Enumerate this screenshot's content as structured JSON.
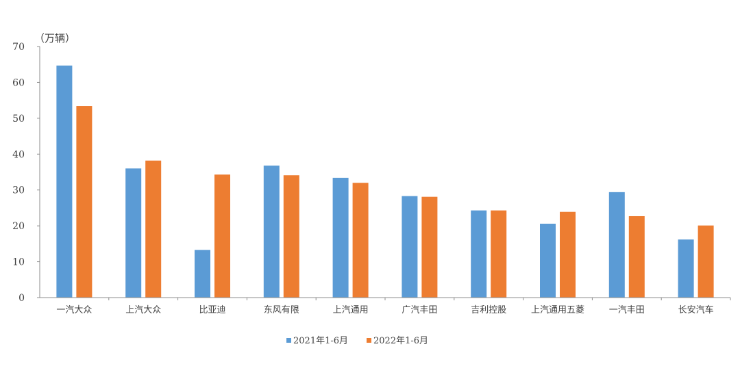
{
  "chart_data": {
    "type": "bar",
    "title": "",
    "xlabel": "",
    "ylabel": "（万辆）",
    "ylim": [
      0,
      70
    ],
    "yticks": [
      0,
      10,
      20,
      30,
      40,
      50,
      60,
      70
    ],
    "grid": false,
    "legend_position": "bottom",
    "categories": [
      "一汽大众",
      "上汽大众",
      "比亚迪",
      "东风有限",
      "上汽通用",
      "广汽丰田",
      "吉利控股",
      "上汽通用五菱",
      "一汽丰田",
      "长安汽车"
    ],
    "series": [
      {
        "name": "2021年1-6月",
        "color": "#5b9bd5",
        "values": [
          64.7,
          36.0,
          13.3,
          36.8,
          33.4,
          28.3,
          24.3,
          20.6,
          29.4,
          16.2
        ]
      },
      {
        "name": "2022年1-6月",
        "color": "#ed7d31",
        "values": [
          53.4,
          38.2,
          34.3,
          34.1,
          32.0,
          28.1,
          24.3,
          23.9,
          22.7,
          20.1
        ]
      }
    ]
  }
}
